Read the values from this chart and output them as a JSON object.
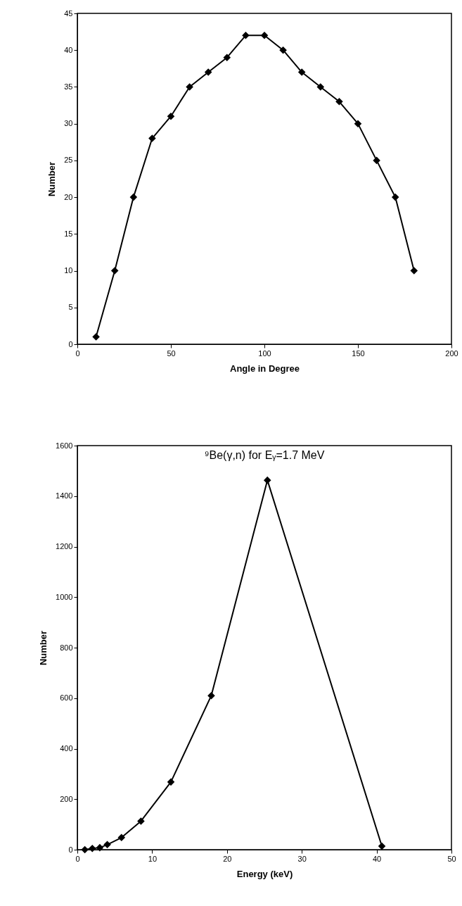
{
  "chart_data": [
    {
      "type": "line",
      "xlabel": "Angle in Degree",
      "ylabel": "Number",
      "marker": "diamond",
      "grid": false,
      "x": [
        10,
        20,
        30,
        40,
        50,
        60,
        70,
        80,
        90,
        100,
        110,
        120,
        130,
        140,
        150,
        160,
        170,
        180
      ],
      "series": [
        {
          "color": "#000000",
          "values": [
            1,
            10,
            20,
            28,
            31,
            35,
            37,
            39,
            42,
            42,
            40,
            37,
            35,
            33,
            30,
            25,
            20,
            10
          ]
        }
      ],
      "xlim": [
        0,
        200
      ],
      "xticks": [
        0,
        50,
        100,
        150,
        200
      ],
      "ylim": [
        0,
        45
      ],
      "yticks": [
        0,
        5,
        10,
        15,
        20,
        25,
        30,
        35,
        40,
        45
      ]
    },
    {
      "type": "line",
      "title": "⁹Be(γ,n) for Eᵧ=1.7 MeV",
      "xlabel": "Energy (keV)",
      "ylabel": "Number",
      "marker": "diamond",
      "grid": false,
      "x": [
        1,
        2,
        3,
        4,
        5.9,
        8.5,
        12.5,
        17.9,
        25.4,
        40.7
      ],
      "series": [
        {
          "color": "#000000",
          "values": [
            0,
            5,
            8,
            20,
            48,
            113,
            268,
            610,
            1463,
            14
          ]
        }
      ],
      "xlim": [
        0,
        50
      ],
      "xticks": [
        0,
        10,
        20,
        30,
        40,
        50
      ],
      "ylim": [
        0,
        1600
      ],
      "yticks": [
        0,
        200,
        400,
        600,
        800,
        1000,
        1200,
        1400,
        1600
      ]
    }
  ]
}
